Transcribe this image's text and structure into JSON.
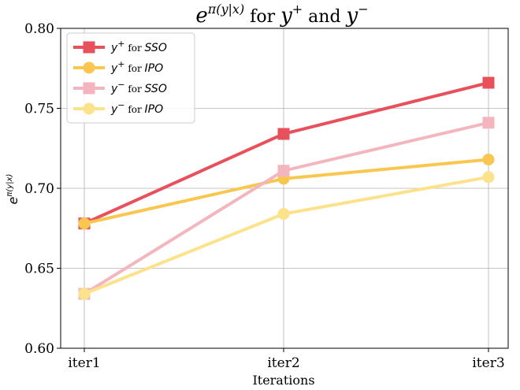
{
  "chart_data": {
    "type": "line",
    "title": {
      "base": "e",
      "exponent": "π(y|x)",
      "middle": " for ",
      "y_plus": "y",
      "plus_sup": "+",
      "and": " and ",
      "y_minus": "y",
      "minus_sup": "−"
    },
    "xlabel": "Iterations",
    "ylabel": {
      "base": "e",
      "exponent": "π(y|x)"
    },
    "categories": [
      "iter1",
      "iter2",
      "iter3"
    ],
    "ylim": [
      0.6,
      0.8
    ],
    "yticks": [
      "0.60",
      "0.65",
      "0.70",
      "0.75",
      "0.80"
    ],
    "grid": true,
    "legend_position": "top-left",
    "series": [
      {
        "key": "y_plus_sso",
        "sym": "y",
        "sup": "+",
        "for": " for ",
        "method": "SSO",
        "marker": "square",
        "color": "#e8505b",
        "values": [
          0.678,
          0.734,
          0.766
        ]
      },
      {
        "key": "y_plus_ipo",
        "sym": "y",
        "sup": "+",
        "for": " for ",
        "method": "IPO",
        "marker": "circle",
        "color": "#f9c74f",
        "values": [
          0.678,
          0.706,
          0.718
        ]
      },
      {
        "key": "y_minus_sso",
        "sym": "y",
        "sup": "−",
        "for": " for ",
        "method": "SSO",
        "marker": "square",
        "color": "#f4b6be",
        "values": [
          0.634,
          0.711,
          0.741
        ]
      },
      {
        "key": "y_minus_ipo",
        "sym": "y",
        "sup": "−",
        "for": " for ",
        "method": "IPO",
        "marker": "circle",
        "color": "#fde28c",
        "values": [
          0.634,
          0.684,
          0.707
        ]
      }
    ]
  }
}
